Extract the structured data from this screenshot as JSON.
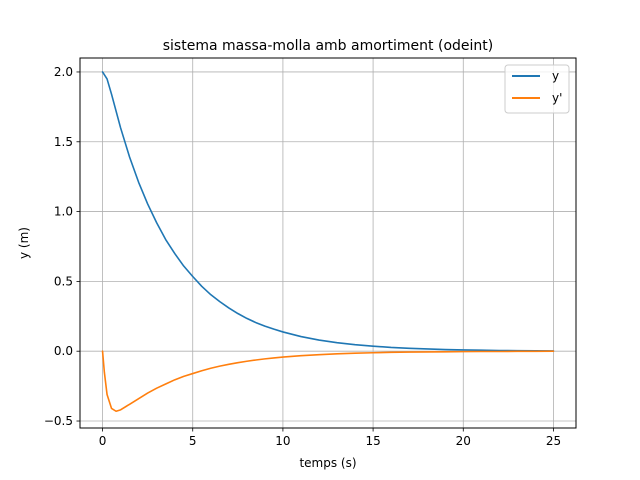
{
  "chart_data": {
    "type": "line",
    "title": "sistema massa-molla amb amortiment (odeint)",
    "xlabel": "temps (s)",
    "ylabel": "y (m)",
    "xlim": [
      -1.25,
      26.25
    ],
    "ylim": [
      -0.55,
      2.1
    ],
    "xticks": [
      0,
      5,
      10,
      15,
      20,
      25
    ],
    "yticks": [
      -0.5,
      0.0,
      0.5,
      1.0,
      1.5,
      2.0
    ],
    "xtick_labels": [
      "0",
      "5",
      "10",
      "15",
      "20",
      "25"
    ],
    "ytick_labels": [
      "−0.5",
      "0.0",
      "0.5",
      "1.0",
      "1.5",
      "2.0"
    ],
    "grid": true,
    "legend_position": "top-right",
    "series": [
      {
        "name": "y",
        "color": "#1f77b4",
        "x": [
          0,
          0.25,
          0.5,
          0.75,
          1,
          1.5,
          2,
          2.5,
          3,
          3.5,
          4,
          4.5,
          5,
          5.5,
          6,
          6.5,
          7,
          7.5,
          8,
          8.5,
          9,
          9.5,
          10,
          11,
          12,
          13,
          14,
          15,
          16,
          17,
          18,
          19,
          20,
          21,
          22,
          23,
          24,
          25
        ],
        "values": [
          2.0,
          1.95,
          1.84,
          1.72,
          1.6,
          1.39,
          1.21,
          1.055,
          0.92,
          0.8,
          0.7,
          0.61,
          0.535,
          0.465,
          0.405,
          0.355,
          0.31,
          0.27,
          0.235,
          0.205,
          0.18,
          0.158,
          0.138,
          0.105,
          0.08,
          0.061,
          0.047,
          0.036,
          0.027,
          0.021,
          0.016,
          0.012,
          0.009,
          0.007,
          0.005,
          0.004,
          0.003,
          0.002
        ]
      },
      {
        "name": "y'",
        "color": "#ff7f0e",
        "x": [
          0,
          0.1,
          0.25,
          0.5,
          0.75,
          1,
          1.5,
          2,
          2.5,
          3,
          3.5,
          4,
          4.5,
          5,
          5.5,
          6,
          6.5,
          7,
          7.5,
          8,
          8.5,
          9,
          9.5,
          10,
          11,
          12,
          13,
          14,
          15,
          16,
          17,
          18,
          19,
          20,
          21,
          22,
          23,
          24,
          25
        ],
        "values": [
          0.0,
          -0.15,
          -0.31,
          -0.41,
          -0.43,
          -0.42,
          -0.38,
          -0.34,
          -0.3,
          -0.265,
          -0.235,
          -0.205,
          -0.18,
          -0.16,
          -0.14,
          -0.122,
          -0.107,
          -0.094,
          -0.082,
          -0.072,
          -0.063,
          -0.055,
          -0.048,
          -0.042,
          -0.032,
          -0.025,
          -0.019,
          -0.014,
          -0.011,
          -0.008,
          -0.006,
          -0.005,
          -0.004,
          -0.003,
          -0.002,
          -0.002,
          -0.001,
          -0.001,
          0.0
        ]
      }
    ]
  }
}
